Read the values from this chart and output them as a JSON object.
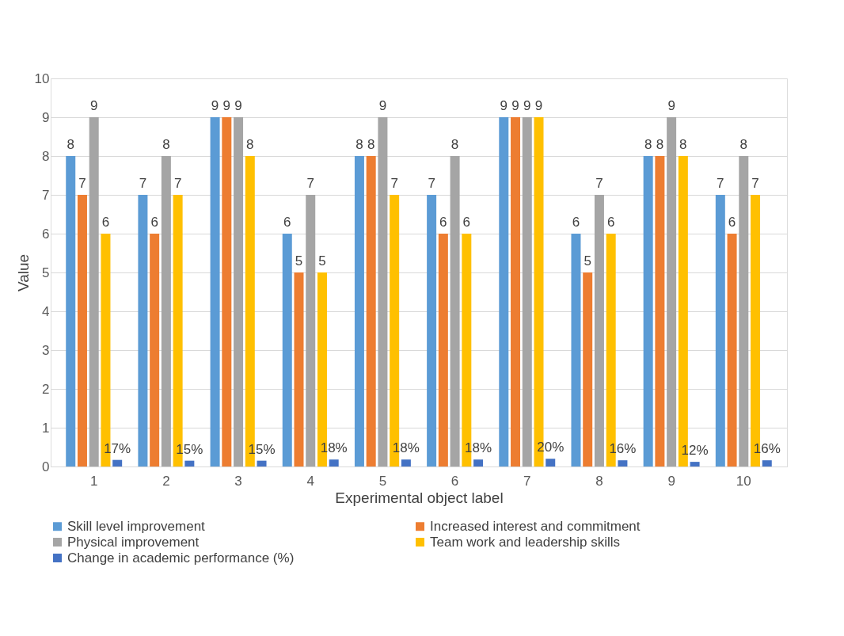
{
  "chart_data": {
    "type": "bar",
    "xlabel": "Experimental object label",
    "ylabel": "Value",
    "categories": [
      "1",
      "2",
      "3",
      "4",
      "5",
      "6",
      "7",
      "8",
      "9",
      "10"
    ],
    "ylim": [
      0,
      10
    ],
    "yticks": [
      0,
      1,
      2,
      3,
      4,
      5,
      6,
      7,
      8,
      9,
      10
    ],
    "grid": "y",
    "legend": "bottom",
    "series": [
      {
        "name": "Skill level improvement",
        "color": "#5b9bd5",
        "values": [
          8,
          7,
          9,
          6,
          8,
          7,
          9,
          6,
          8,
          7
        ],
        "value_labels": [
          "8",
          "7",
          "9",
          "6",
          "8",
          "7",
          "9",
          "6",
          "8",
          "7"
        ]
      },
      {
        "name": "Increased interest and commitment",
        "color": "#ed7d31",
        "values": [
          7,
          6,
          9,
          5,
          8,
          6,
          9,
          5,
          8,
          6
        ],
        "value_labels": [
          "7",
          "6",
          "9",
          "5",
          "8",
          "6",
          "9",
          "5",
          "8",
          "6"
        ]
      },
      {
        "name": "Physical improvement",
        "color": "#a5a5a5",
        "values": [
          9,
          8,
          9,
          7,
          9,
          8,
          9,
          7,
          9,
          8
        ],
        "value_labels": [
          "9",
          "8",
          "9",
          "7",
          "9",
          "8",
          "9",
          "7",
          "9",
          "8"
        ]
      },
      {
        "name": "Team work and leadership skills",
        "color": "#ffc000",
        "values": [
          6,
          7,
          8,
          5,
          7,
          6,
          9,
          6,
          8,
          7
        ],
        "value_labels": [
          "6",
          "7",
          "8",
          "5",
          "7",
          "6",
          "9",
          "6",
          "8",
          "7"
        ]
      },
      {
        "name": "Change in academic performance (%)",
        "color": "#4472c4",
        "values": [
          0.17,
          0.15,
          0.15,
          0.18,
          0.18,
          0.18,
          0.2,
          0.16,
          0.12,
          0.16
        ],
        "value_labels": [
          "17%",
          "15%",
          "15%",
          "18%",
          "18%",
          "18%",
          "20%",
          "16%",
          "12%",
          "16%"
        ]
      }
    ]
  }
}
